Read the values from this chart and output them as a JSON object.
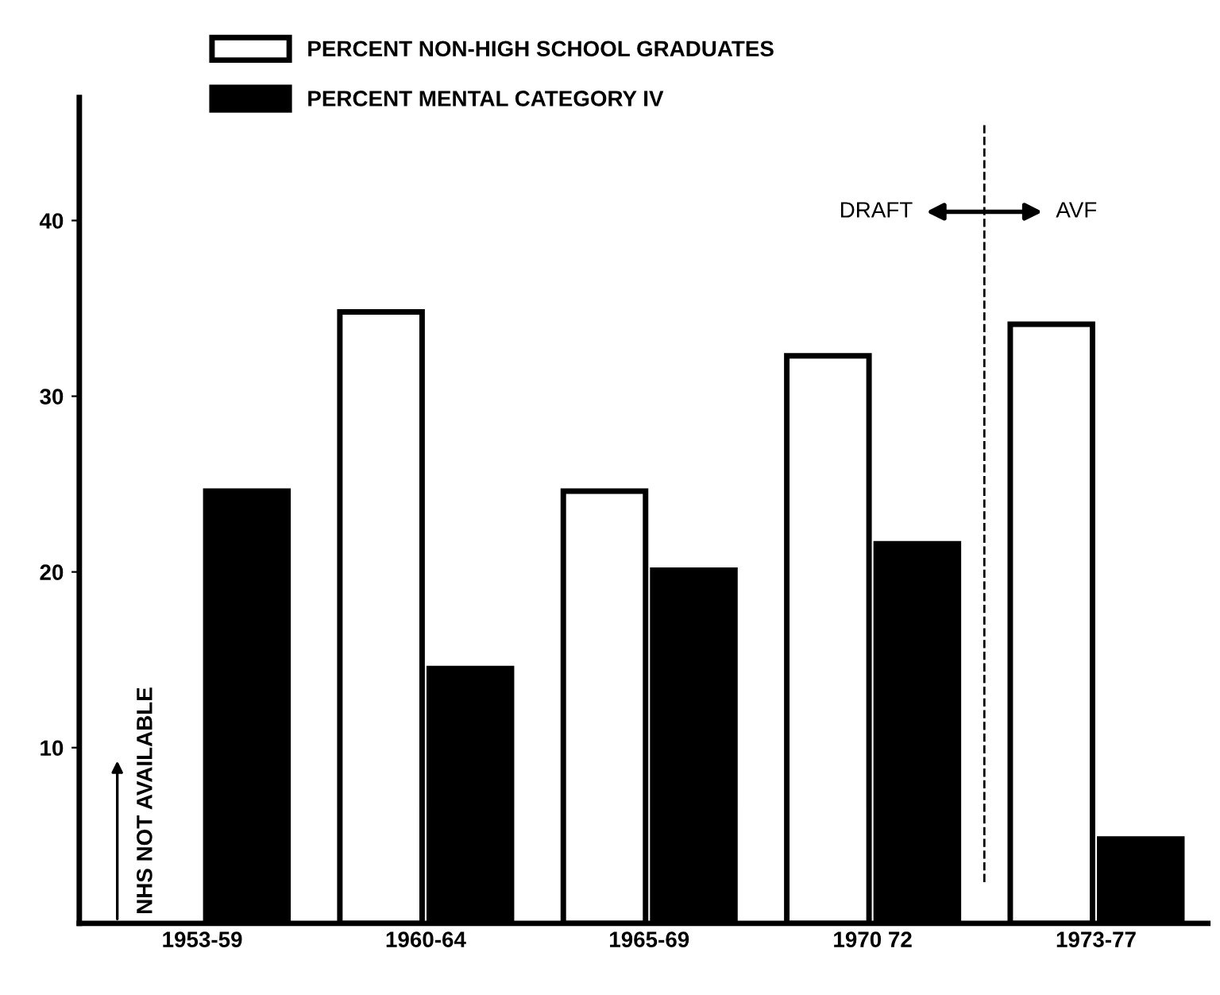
{
  "chart_data": {
    "type": "bar",
    "categories": [
      "1953-59",
      "1960-64",
      "1965-69",
      "1970 72",
      "1973-77"
    ],
    "series": [
      {
        "name": "PERCENT NON-HIGH SCHOOL GRADUATES",
        "color": "#ffffff",
        "values": [
          null,
          34.8,
          24.6,
          32.3,
          34.1
        ]
      },
      {
        "name": "PERCENT MENTAL CATEGORY IV",
        "color": "#000000",
        "values": [
          24.6,
          14.5,
          20.1,
          21.6,
          4.8
        ]
      }
    ],
    "ylim": [
      0,
      47
    ],
    "yticks": [
      10,
      20,
      30,
      40
    ],
    "annotations": [
      {
        "text": "NHS NOT AVAILABLE",
        "x": "1953-59",
        "y": 0
      },
      "DRAFT",
      "AVF"
    ],
    "legend": "top",
    "grid": false
  }
}
